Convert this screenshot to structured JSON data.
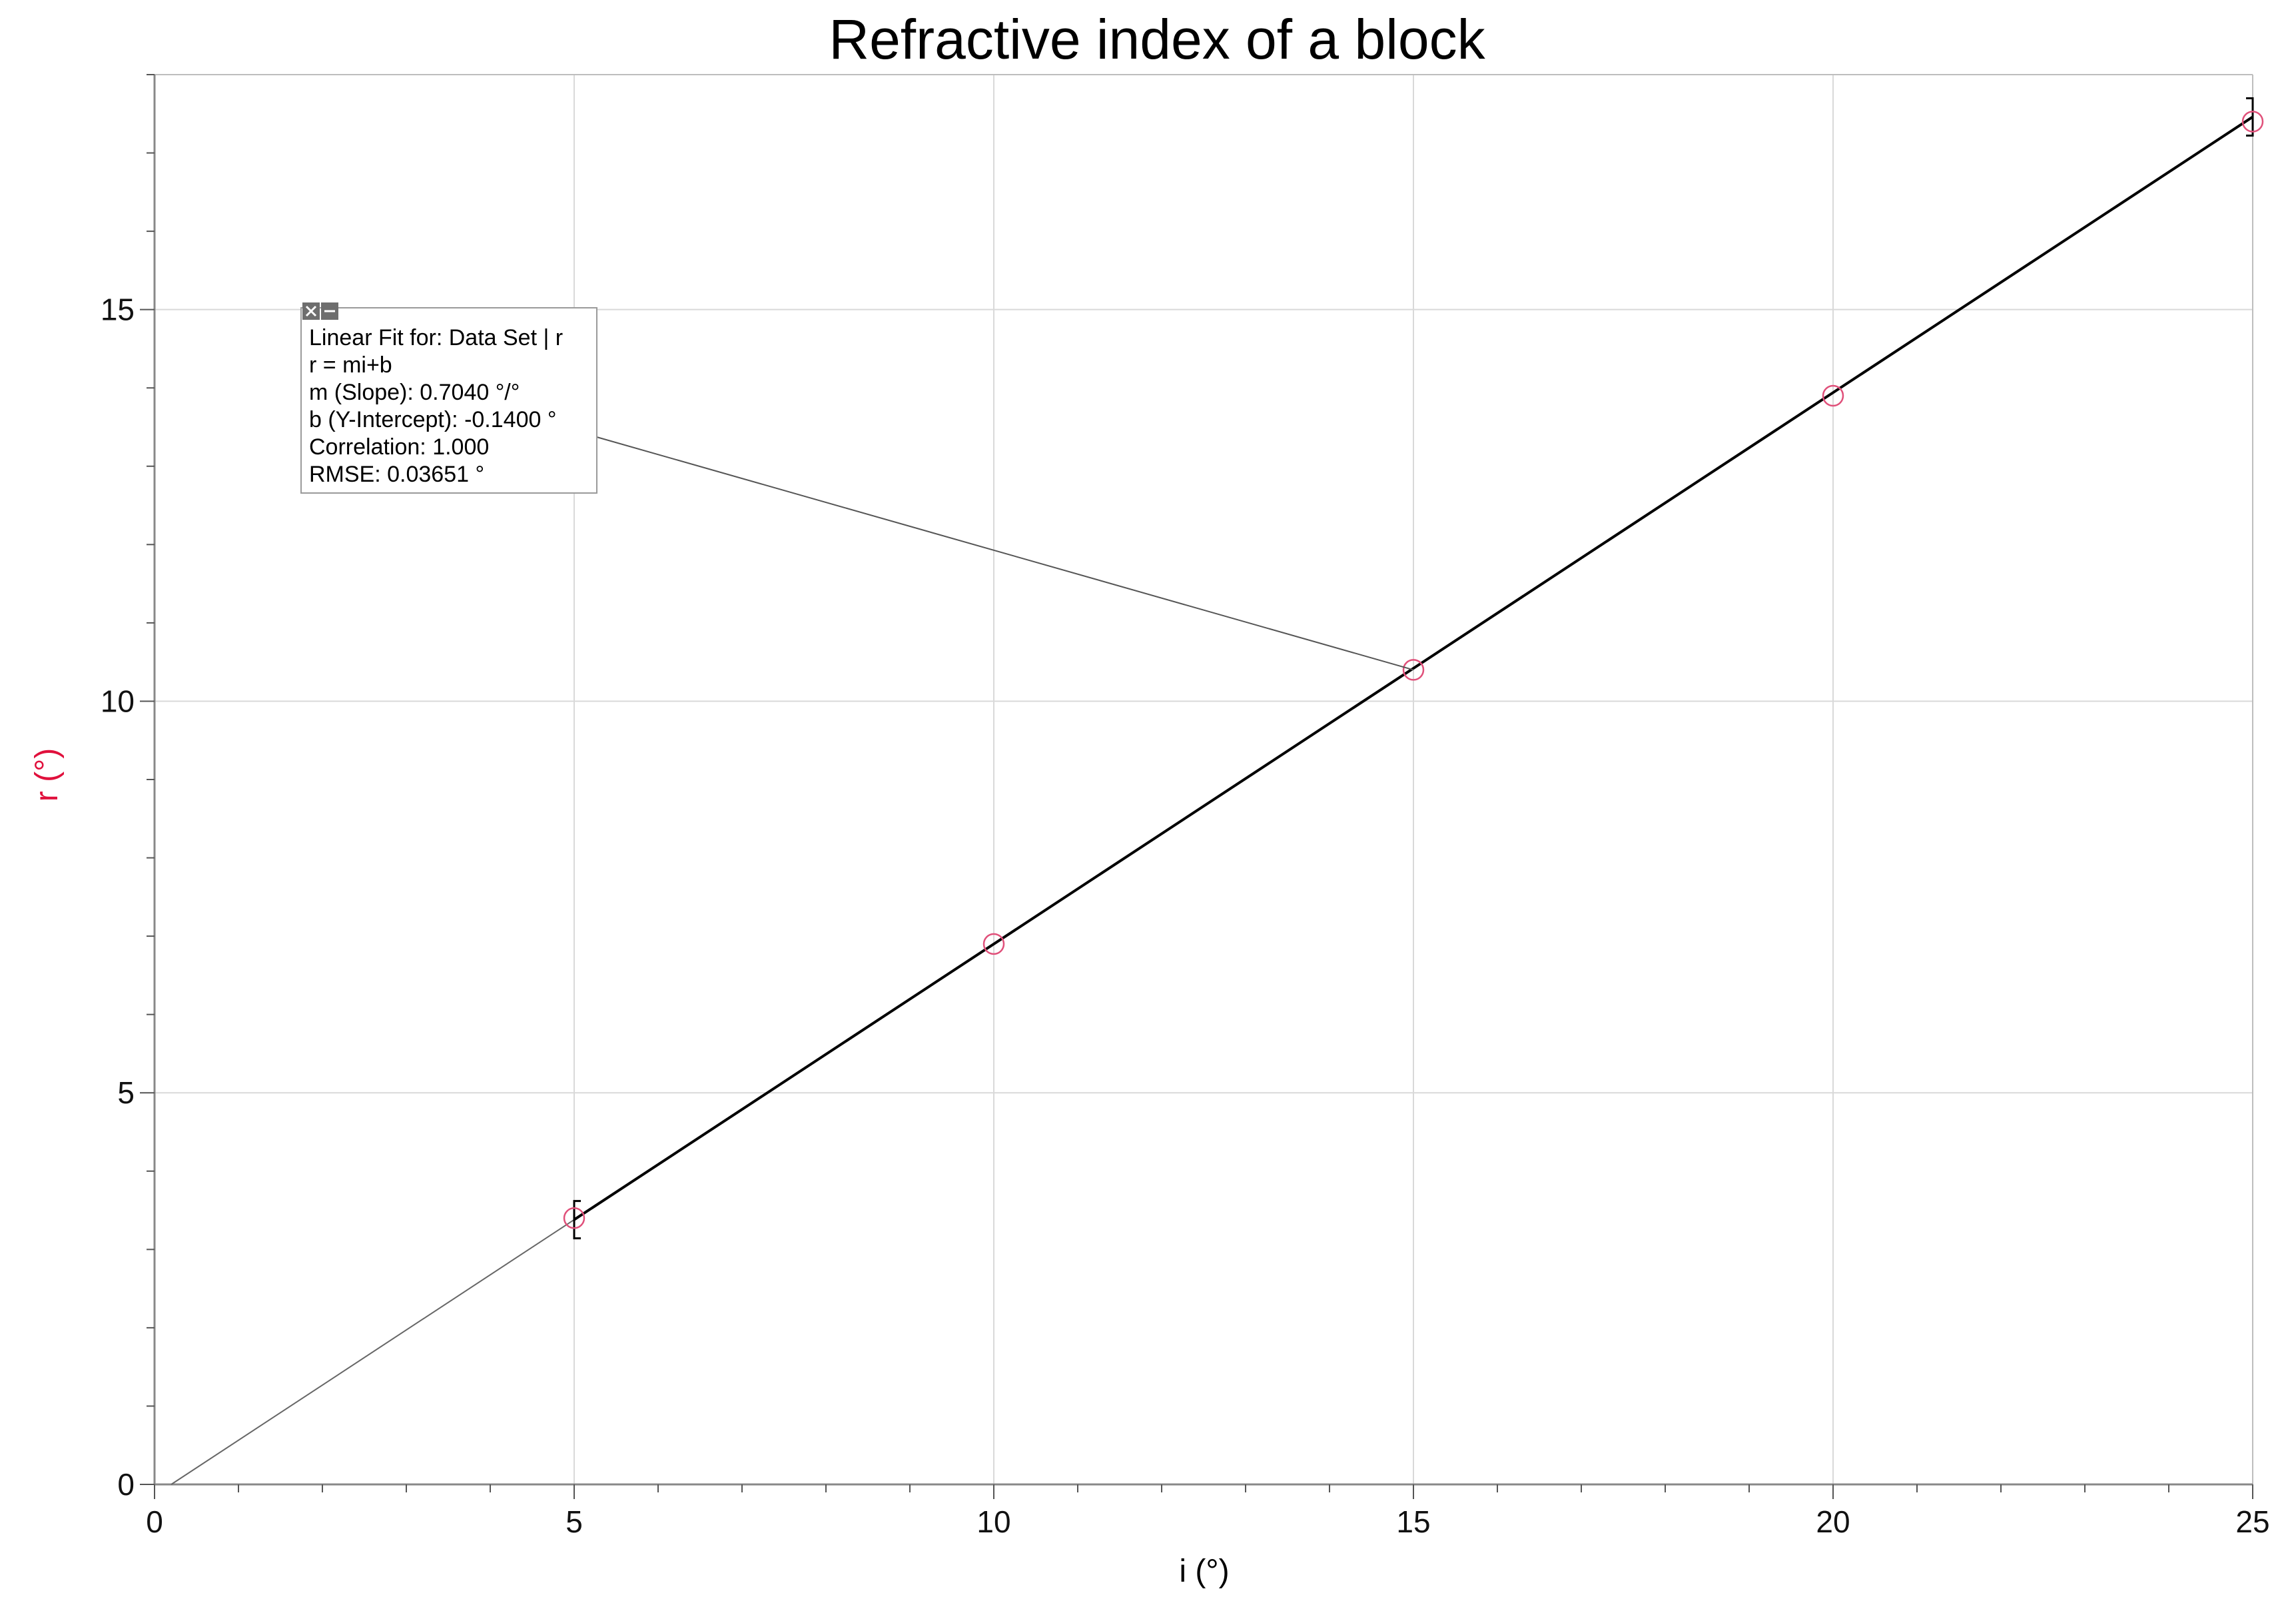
{
  "chart_data": {
    "type": "scatter",
    "title": "Refractive index of a block",
    "xlabel": "i (°)",
    "ylabel": "r (°)",
    "xlim": [
      0,
      25
    ],
    "ylim": [
      0,
      18
    ],
    "x_ticks": [
      0,
      5,
      10,
      15,
      20,
      25
    ],
    "x_tick_labels": [
      "0",
      "5",
      "10",
      "15",
      "20",
      "25"
    ],
    "y_ticks": [
      0,
      5,
      10,
      15
    ],
    "y_tick_labels": [
      "0",
      "5",
      "10",
      "15"
    ],
    "grid": true,
    "series": [
      {
        "name": "Data Set | r",
        "marker": "open-circle",
        "x": [
          5,
          10,
          15,
          20,
          25
        ],
        "y": [
          3.4,
          6.9,
          10.4,
          13.9,
          17.4
        ]
      }
    ],
    "fit": {
      "type": "linear",
      "x_range": [
        5,
        25
      ],
      "extended_range": [
        0,
        5
      ],
      "slope": 0.704,
      "intercept": -0.14
    },
    "annotation": {
      "lines": [
        "Linear Fit for: Data Set | r",
        "r = mi+b",
        "m (Slope): 0.7040 °/°",
        "b (Y-Intercept): -0.1400 °",
        "Correlation: 1.000",
        "RMSE: 0.03651 °"
      ],
      "pointer_to": [
        15,
        10.4
      ]
    },
    "colors": {
      "data_marker": "#e0507a",
      "ylabel": "#e0103c",
      "fit_line": "#000000",
      "grid": "#d9d9d9"
    }
  }
}
